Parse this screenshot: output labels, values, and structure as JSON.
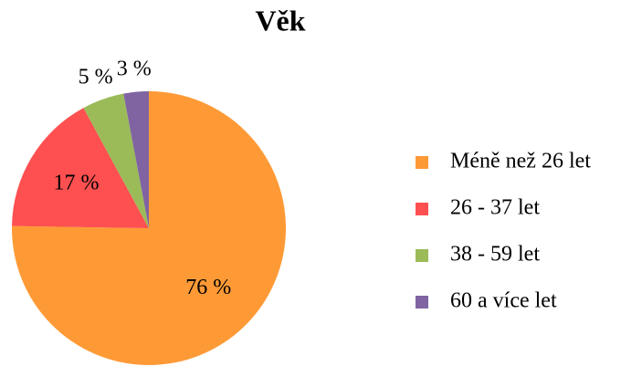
{
  "chart_data": {
    "type": "pie",
    "title": "Věk",
    "categories": [
      "Méně než 26 let",
      "26 - 37 let",
      "38 - 59 let",
      "60 a více let"
    ],
    "values": [
      76,
      17,
      5,
      3
    ],
    "value_labels": [
      "76 %",
      "17 %",
      "5 %",
      "3 %"
    ],
    "colors": [
      "#fe9a36",
      "#fe5050",
      "#9bbb59",
      "#8064a2"
    ],
    "legend": "right"
  }
}
